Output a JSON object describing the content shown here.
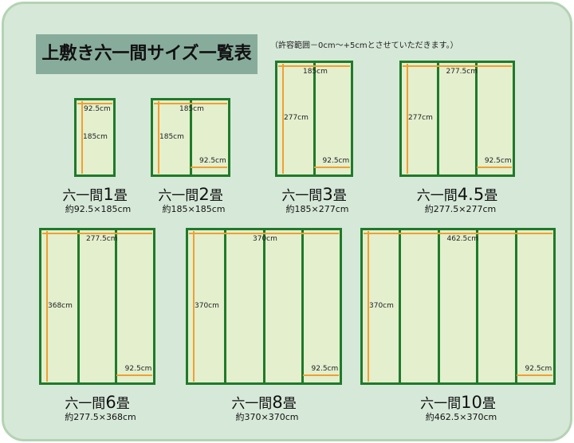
{
  "title": "上敷き六一間サイズ一覧表",
  "note": "（許容範囲－0cm～+5cmとさせていただきます。）",
  "colors": {
    "background": "#d6e8d8",
    "border": "#1f7a2a",
    "tatami": "#e3efcd",
    "arrow": "#f0a030",
    "title_bg": "#88ac9c"
  },
  "rooms": [
    {
      "name_prefix": "六一間",
      "count": "1",
      "name_suffix": "畳",
      "size": "約92.5×185cm",
      "width_label": "92.5cm",
      "height_label": "185cm",
      "panel_label": "",
      "panels": 1
    },
    {
      "name_prefix": "六一間",
      "count": "2",
      "name_suffix": "畳",
      "size": "約185×185cm",
      "width_label": "185cm",
      "height_label": "185cm",
      "panel_label": "92.5cm",
      "panels": 2
    },
    {
      "name_prefix": "六一間",
      "count": "3",
      "name_suffix": "畳",
      "size": "約185×277cm",
      "width_label": "185cm",
      "height_label": "277cm",
      "panel_label": "92.5cm",
      "panels": 2
    },
    {
      "name_prefix": "六一間",
      "count": "4.5",
      "name_suffix": "畳",
      "size": "約277.5×277cm",
      "width_label": "277.5cm",
      "height_label": "277cm",
      "panel_label": "92.5cm",
      "panels": 3
    },
    {
      "name_prefix": "六一間",
      "count": "6",
      "name_suffix": "畳",
      "size": "約277.5×368cm",
      "width_label": "277.5cm",
      "height_label": "368cm",
      "panel_label": "92.5cm",
      "panels": 3
    },
    {
      "name_prefix": "六一間",
      "count": "8",
      "name_suffix": "畳",
      "size": "約370×370cm",
      "width_label": "370cm",
      "height_label": "370cm",
      "panel_label": "92.5cm",
      "panels": 4
    },
    {
      "name_prefix": "六一間",
      "count": "10",
      "name_suffix": "畳",
      "size": "約462.5×370cm",
      "width_label": "462.5cm",
      "height_label": "370cm",
      "panel_label": "92.5cm",
      "panels": 5
    }
  ]
}
